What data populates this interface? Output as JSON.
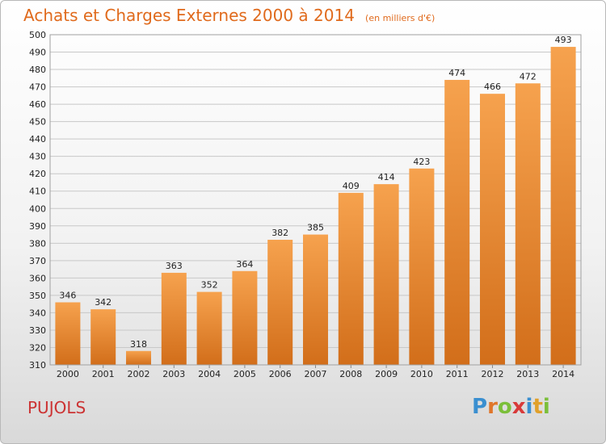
{
  "title": "Achats et Charges Externes 2000 à 2014",
  "unit": "(en milliers d'€)",
  "commune": "PUJOLS",
  "logo": {
    "letters": [
      "P",
      "r",
      "o",
      "x",
      "i",
      "t",
      "i"
    ],
    "colors": [
      "#3a8fd0",
      "#e0762a",
      "#7bbf3a",
      "#d83a3a",
      "#3a8fd0",
      "#e0a02a",
      "#7bbf3a"
    ]
  },
  "colors": {
    "title": "#e06a1c",
    "commune": "#cc3333",
    "bar_light": "#f6a24e",
    "bar_dark": "#d26e1a"
  },
  "chart_data": {
    "type": "bar",
    "categories": [
      "2000",
      "2001",
      "2002",
      "2003",
      "2004",
      "2005",
      "2006",
      "2007",
      "2008",
      "2009",
      "2010",
      "2011",
      "2012",
      "2013",
      "2014"
    ],
    "values": [
      346,
      342,
      318,
      363,
      352,
      364,
      382,
      385,
      409,
      414,
      423,
      474,
      466,
      472,
      493
    ],
    "title": "Achats et Charges Externes 2000 à 2014",
    "subtitle": "(en milliers d'€)",
    "xlabel": "",
    "ylabel": "",
    "ylim": [
      310,
      500
    ],
    "ytick_step": 10,
    "grid": true,
    "data_labels": true
  }
}
